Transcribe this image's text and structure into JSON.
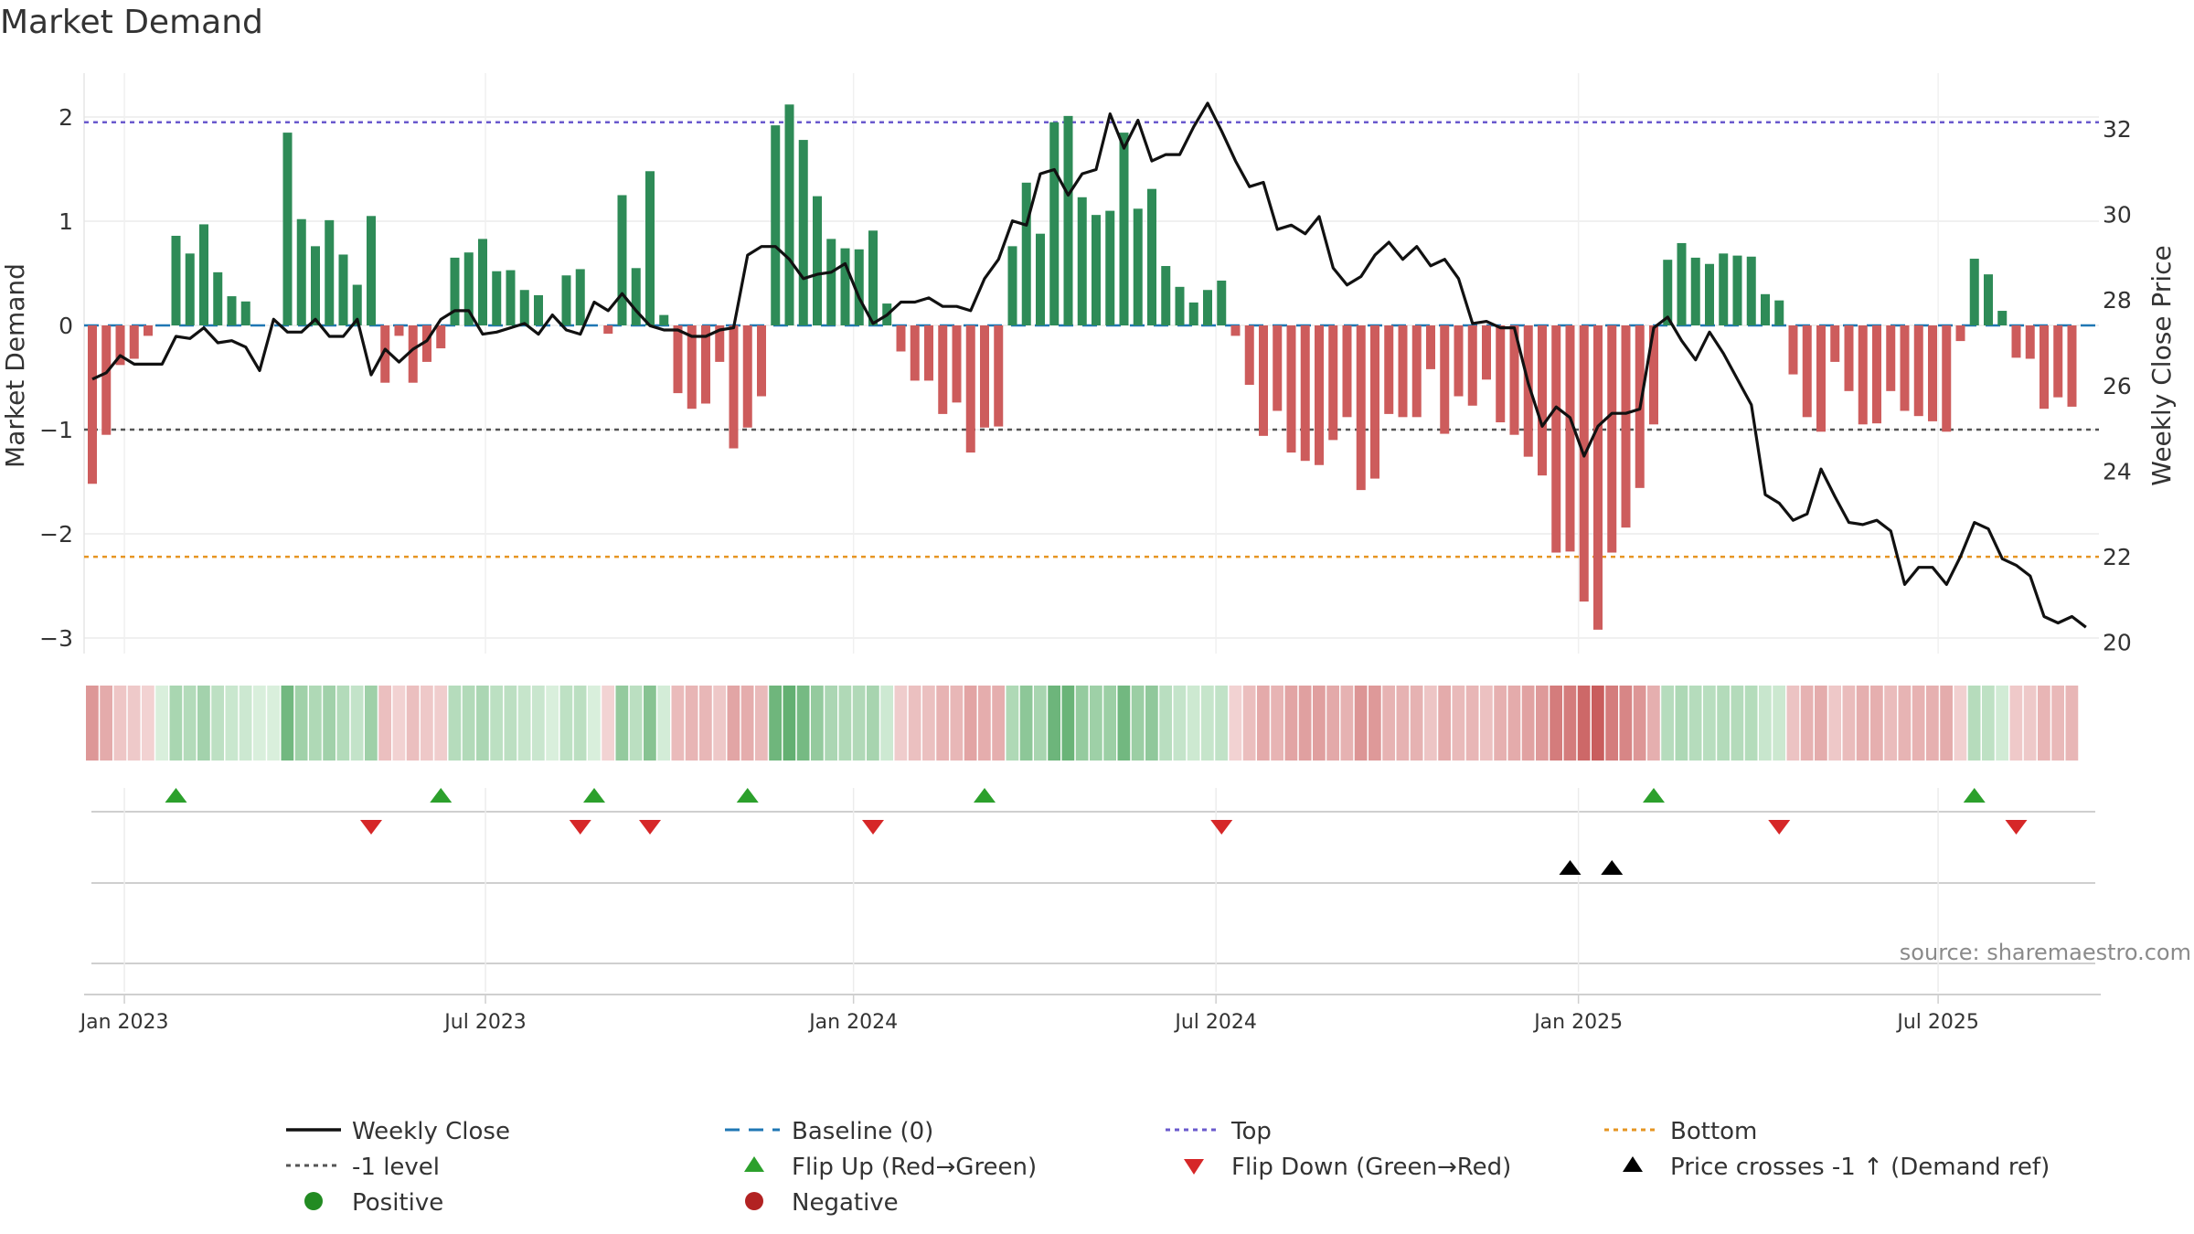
{
  "title": "Market Demand",
  "source": "source: sharemaestro.com",
  "colors": {
    "positive": "#2e8b57",
    "negative": "#cd5c5c",
    "price": "#111111",
    "baseline": "#1f77b4",
    "top": "#6a5acd",
    "bottom": "#e69522",
    "minus_one": "#555555",
    "flip_up": "#2ca02c",
    "flip_down": "#d62728",
    "cross": "#000000"
  },
  "chart_data": {
    "type": "bar",
    "title": "Market Demand",
    "ylabel": "Market Demand",
    "y2label": "Weekly Close Price",
    "ylim": [
      -3.15,
      2.2
    ],
    "y2lim": [
      20,
      33
    ],
    "yticks": [
      "2",
      "1",
      "0",
      "−2",
      "−3"
    ],
    "yticks_values": [
      2,
      1,
      0,
      -2,
      -3
    ],
    "yticks_minus1": "−1",
    "y2ticks": [
      "32",
      "30",
      "28",
      "26",
      "24",
      "22",
      "20"
    ],
    "y2ticks_values": [
      32,
      30,
      28,
      26,
      24,
      22,
      20
    ],
    "xticks": [
      "Jan 2023",
      "Jul 2023",
      "Jan 2024",
      "Jul 2024",
      "Jan 2025",
      "Jul 2025"
    ],
    "xticks_week": [
      2.3,
      28.2,
      54.6,
      80.6,
      106.6,
      132.4
    ],
    "reference_lines": {
      "top": 1.95,
      "minus_one": -1.0,
      "bottom": -2.22,
      "baseline": 0
    },
    "demand": [
      -1.52,
      -1.05,
      -0.38,
      -0.32,
      -0.1,
      0,
      0.86,
      0.69,
      0.97,
      0.51,
      0.28,
      0.23,
      0,
      0,
      1.85,
      1.02,
      0.76,
      1.01,
      0.68,
      0.39,
      1.05,
      -0.55,
      -0.1,
      -0.55,
      -0.35,
      -0.22,
      0.65,
      0.7,
      0.83,
      0.52,
      0.53,
      0.34,
      0.29,
      0,
      0.48,
      0.54,
      0,
      -0.08,
      1.25,
      0.55,
      1.48,
      0.1,
      -0.65,
      -0.8,
      -0.75,
      -0.35,
      -1.18,
      -0.98,
      -0.68,
      1.92,
      2.12,
      1.78,
      1.24,
      0.83,
      0.74,
      0.73,
      0.91,
      0.21,
      -0.25,
      -0.53,
      -0.53,
      -0.85,
      -0.74,
      -1.22,
      -0.98,
      -0.97,
      0.76,
      1.37,
      0.88,
      1.95,
      2.01,
      1.23,
      1.06,
      1.1,
      1.85,
      1.12,
      1.31,
      0.57,
      0.37,
      0.22,
      0.34,
      0.43,
      -0.1,
      -0.57,
      -1.06,
      -0.82,
      -1.22,
      -1.3,
      -1.34,
      -1.1,
      -0.88,
      -1.58,
      -1.47,
      -0.85,
      -0.88,
      -0.88,
      -0.42,
      -1.04,
      -0.68,
      -0.77,
      -0.52,
      -0.93,
      -1.05,
      -1.26,
      -1.44,
      -2.18,
      -2.17,
      -2.65,
      -2.92,
      -2.18,
      -1.94,
      -1.56,
      -0.95,
      0.63,
      0.79,
      0.65,
      0.59,
      0.69,
      0.67,
      0.66,
      0.3,
      0.24,
      -0.47,
      -0.88,
      -1.02,
      -0.35,
      -0.63,
      -0.95,
      -0.94,
      -0.63,
      -0.82,
      -0.87,
      -0.92,
      -1.02,
      -0.15,
      0.64,
      0.49,
      0.14,
      -0.31,
      -0.32,
      -0.8,
      -0.69,
      -0.78
    ],
    "price": [
      26.15,
      26.3,
      26.7,
      26.5,
      26.5,
      26.5,
      27.15,
      27.1,
      27.35,
      27.0,
      27.05,
      26.9,
      26.35,
      27.55,
      27.25,
      27.25,
      27.55,
      27.15,
      27.15,
      27.55,
      26.25,
      26.85,
      26.55,
      26.85,
      27.05,
      27.55,
      27.75,
      27.75,
      27.2,
      27.25,
      27.35,
      27.45,
      27.2,
      27.65,
      27.3,
      27.2,
      27.95,
      27.75,
      28.15,
      27.75,
      27.4,
      27.3,
      27.3,
      27.15,
      27.15,
      27.3,
      27.35,
      29.05,
      29.25,
      29.25,
      28.95,
      28.5,
      28.6,
      28.65,
      28.85,
      28.05,
      27.45,
      27.65,
      27.95,
      27.95,
      28.05,
      27.85,
      27.85,
      27.75,
      28.5,
      28.95,
      29.85,
      29.75,
      30.95,
      31.05,
      30.45,
      30.95,
      31.05,
      32.35,
      31.55,
      32.2,
      31.25,
      31.4,
      31.4,
      32.05,
      32.6,
      31.95,
      31.25,
      30.65,
      30.75,
      29.65,
      29.75,
      29.55,
      29.95,
      28.75,
      28.35,
      28.55,
      29.05,
      29.35,
      28.95,
      29.25,
      28.8,
      28.95,
      28.5,
      27.45,
      27.5,
      27.35,
      27.35,
      26.05,
      25.05,
      25.5,
      25.25,
      24.35,
      25.05,
      25.35,
      25.35,
      25.45,
      27.35,
      27.6,
      27.05,
      26.6,
      27.25,
      26.75,
      26.15,
      25.55,
      23.45,
      23.25,
      22.85,
      23.0,
      24.05,
      23.4,
      22.8,
      22.75,
      22.85,
      22.6,
      21.35,
      21.75,
      21.75,
      21.35,
      22.0,
      22.8,
      22.65,
      21.95,
      21.8,
      21.55,
      20.6,
      20.45,
      20.6,
      20.35
    ],
    "flip_up_weeks": [
      6,
      25,
      36,
      47,
      64,
      112,
      135
    ],
    "flip_down_weeks": [
      20,
      35,
      40,
      56,
      81,
      121,
      138
    ],
    "price_cross_weeks": [
      106,
      109
    ],
    "strip_label_positive": "Positive",
    "strip_label_negative": "Negative"
  },
  "legend": {
    "items": [
      "Weekly Close",
      "Baseline (0)",
      "Top",
      "Bottom",
      "-1 level",
      "Flip Up (Red→Green)",
      "Flip Down (Green→Red)",
      "Price crosses -1 ↑ (Demand ref)",
      "Positive",
      "Negative"
    ]
  }
}
